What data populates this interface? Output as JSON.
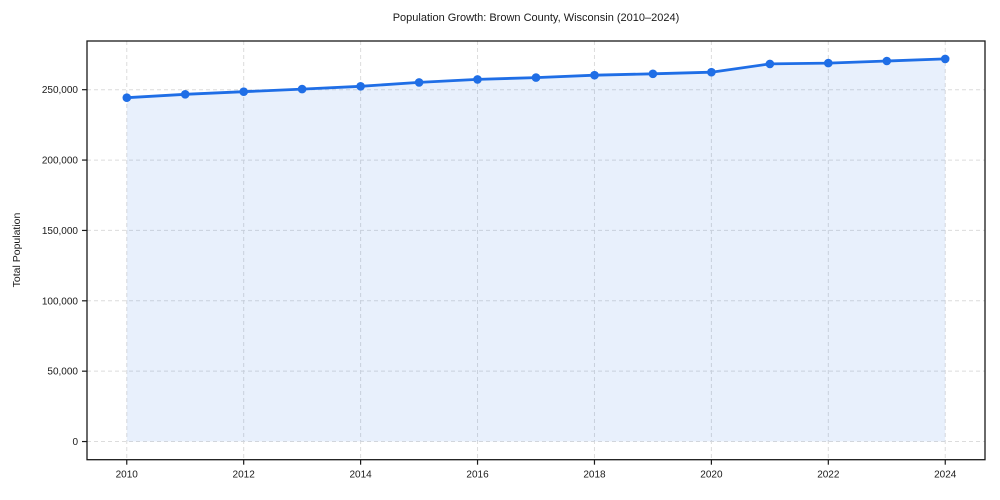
{
  "page": {
    "background": "#ffffff"
  },
  "chart_data": {
    "type": "line",
    "title": "Population Growth: Brown County, Wisconsin (2010–2024)",
    "xlabel": "",
    "ylabel": "Total Population",
    "x": [
      2010,
      2011,
      2012,
      2013,
      2014,
      2015,
      2016,
      2017,
      2018,
      2019,
      2020,
      2021,
      2022,
      2023,
      2024
    ],
    "series": [
      {
        "name": "Total Population",
        "values": [
          244300,
          246700,
          248600,
          250400,
          252400,
          255200,
          257300,
          258600,
          260300,
          261300,
          262400,
          268300,
          268900,
          270400,
          271900
        ]
      }
    ],
    "x_ticks": [
      2010,
      2012,
      2014,
      2016,
      2018,
      2020,
      2022,
      2024
    ],
    "x_tick_labels": [
      "2010",
      "2012",
      "2014",
      "2016",
      "2018",
      "2020",
      "2022",
      "2024"
    ],
    "y_ticks": [
      0,
      50000,
      100000,
      150000,
      200000,
      250000
    ],
    "y_tick_labels": [
      "0",
      "50,000",
      "100,000",
      "150,000",
      "200,000",
      "250,000"
    ],
    "xlim": [
      2009.32,
      2024.68
    ],
    "ylim": [
      -12900,
      284600
    ],
    "grid": true,
    "grid_style": "dashed",
    "legend_position": "none",
    "line_color": "#1f6ee6",
    "marker": "circle",
    "marker_color": "#1f6ee6",
    "area_fill": true,
    "area_color": "rgba(31,110,230,0.10)",
    "grid_color": "#dcdcdc",
    "spine_color": "#1a1a1a",
    "baseline_value": 0
  }
}
